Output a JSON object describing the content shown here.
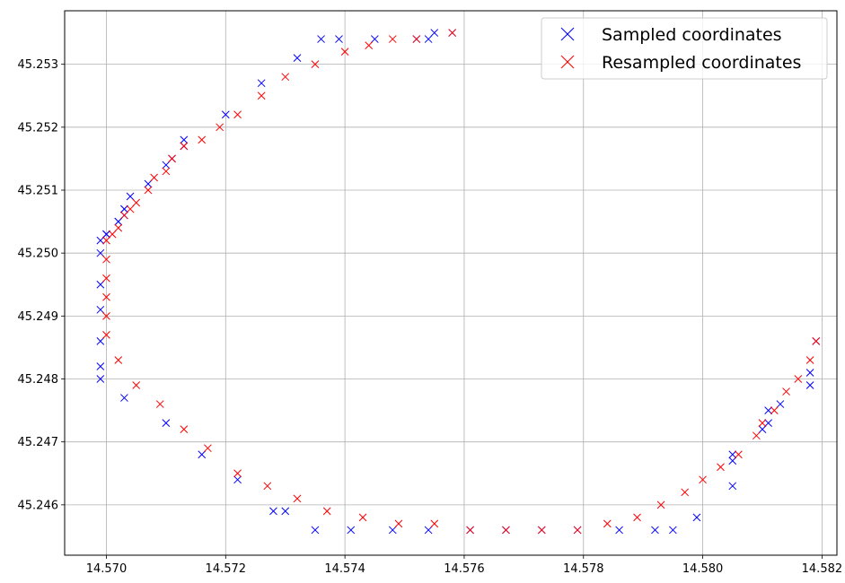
{
  "chart_data": {
    "type": "scatter",
    "title": "",
    "xlabel": "",
    "ylabel": "",
    "xlim": [
      14.5693,
      14.58225
    ],
    "ylim": [
      45.2452,
      45.25385
    ],
    "xticks": [
      14.57,
      14.572,
      14.574,
      14.576,
      14.578,
      14.58,
      14.582
    ],
    "xtick_labels": [
      "14.570",
      "14.572",
      "14.574",
      "14.576",
      "14.578",
      "14.580",
      "14.582"
    ],
    "yticks": [
      45.246,
      45.247,
      45.248,
      45.249,
      45.25,
      45.251,
      45.252,
      45.253
    ],
    "ytick_labels": [
      "45.246",
      "45.247",
      "45.248",
      "45.249",
      "45.250",
      "45.251",
      "45.252",
      "45.253"
    ],
    "grid": true,
    "legend_position": "top-right",
    "marker": "x",
    "series": [
      {
        "name": "Sampled coordinates",
        "color": "#0000ff",
        "x": [
          14.5699,
          14.5699,
          14.5699,
          14.5699,
          14.5699,
          14.5699,
          14.5699,
          14.57,
          14.57,
          14.5702,
          14.5702,
          14.5703,
          14.5703,
          14.5703,
          14.5704,
          14.5707,
          14.571,
          14.5711,
          14.5713,
          14.5713,
          14.572,
          14.5726,
          14.5732,
          14.5736,
          14.5739,
          14.5745,
          14.5752,
          14.5754,
          14.5755,
          14.5758,
          14.5703,
          14.571,
          14.5716,
          14.5722,
          14.5728,
          14.573,
          14.5735,
          14.5741,
          14.5748,
          14.5754,
          14.5761,
          14.5767,
          14.5773,
          14.5779,
          14.5786,
          14.5792,
          14.5795,
          14.5799,
          14.5805,
          14.5805,
          14.5805,
          14.581,
          14.5811,
          14.5811,
          14.5813,
          14.5818,
          14.5818,
          14.5819
        ],
        "y": [
          45.248,
          45.2482,
          45.2486,
          45.2491,
          45.2495,
          45.25,
          45.2502,
          45.2503,
          45.2503,
          45.2505,
          45.2505,
          45.2506,
          45.2507,
          45.2507,
          45.2509,
          45.2511,
          45.2514,
          45.2515,
          45.2517,
          45.2518,
          45.2522,
          45.2527,
          45.2531,
          45.2534,
          45.2534,
          45.2534,
          45.2534,
          45.2534,
          45.2535,
          45.2535,
          45.2477,
          45.2473,
          45.2468,
          45.2464,
          45.2459,
          45.2459,
          45.2456,
          45.2456,
          45.2456,
          45.2456,
          45.2456,
          45.2456,
          45.2456,
          45.2456,
          45.2456,
          45.2456,
          45.2456,
          45.2458,
          45.2463,
          45.2467,
          45.2468,
          45.2472,
          45.2473,
          45.2475,
          45.2476,
          45.2479,
          45.2481,
          45.2486
        ]
      },
      {
        "name": "Resampled coordinates",
        "color": "#ff0000",
        "x": [
          14.57,
          14.57,
          14.57,
          14.57,
          14.57,
          14.57,
          14.5701,
          14.5702,
          14.5703,
          14.5704,
          14.5705,
          14.5707,
          14.5708,
          14.571,
          14.5711,
          14.5713,
          14.5716,
          14.5719,
          14.5722,
          14.5726,
          14.573,
          14.5735,
          14.574,
          14.5744,
          14.5748,
          14.5752,
          14.5758,
          14.5702,
          14.5705,
          14.5709,
          14.5713,
          14.5717,
          14.5722,
          14.5727,
          14.5732,
          14.5737,
          14.5743,
          14.5749,
          14.5755,
          14.5761,
          14.5767,
          14.5773,
          14.5779,
          14.5784,
          14.5789,
          14.5793,
          14.5797,
          14.58,
          14.5803,
          14.5806,
          14.5809,
          14.581,
          14.5812,
          14.5814,
          14.5816,
          14.5818,
          14.5819
        ],
        "y": [
          45.2487,
          45.249,
          45.2493,
          45.2496,
          45.2499,
          45.2502,
          45.2503,
          45.2504,
          45.2506,
          45.2507,
          45.2508,
          45.251,
          45.2512,
          45.2513,
          45.2515,
          45.2517,
          45.2518,
          45.252,
          45.2522,
          45.2525,
          45.2528,
          45.253,
          45.2532,
          45.2533,
          45.2534,
          45.2534,
          45.2535,
          45.2483,
          45.2479,
          45.2476,
          45.2472,
          45.2469,
          45.2465,
          45.2463,
          45.2461,
          45.2459,
          45.2458,
          45.2457,
          45.2457,
          45.2456,
          45.2456,
          45.2456,
          45.2456,
          45.2457,
          45.2458,
          45.246,
          45.2462,
          45.2464,
          45.2466,
          45.2468,
          45.2471,
          45.2473,
          45.2475,
          45.2478,
          45.248,
          45.2483,
          45.2486
        ]
      }
    ]
  }
}
